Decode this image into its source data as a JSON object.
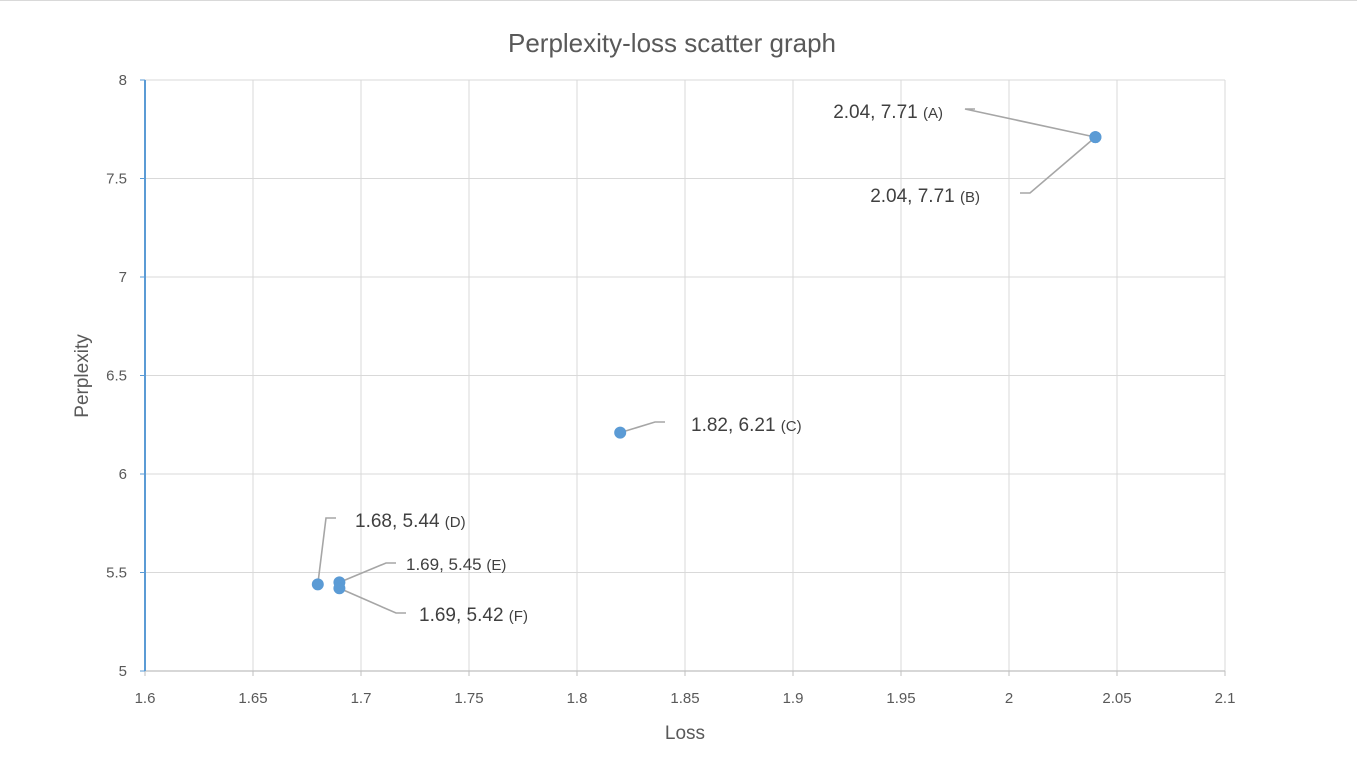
{
  "chart_data": {
    "type": "scatter",
    "title": "Perplexity-loss scatter graph",
    "xlabel": "Loss",
    "ylabel": "Perplexity",
    "xlim": [
      1.6,
      2.1
    ],
    "ylim": [
      5,
      8
    ],
    "xticks": [
      "1.6",
      "1.65",
      "1.7",
      "1.75",
      "1.8",
      "1.85",
      "1.9",
      "1.95",
      "2",
      "2.05",
      "2.1"
    ],
    "yticks": [
      "5",
      "5.5",
      "6",
      "6.5",
      "7",
      "7.5",
      "8"
    ],
    "grid": true,
    "legend": "none",
    "marker_color": "#5B9BD5",
    "points": [
      {
        "x": 2.04,
        "y": 7.71,
        "label": "2.04, 7.71",
        "tag": "(A)"
      },
      {
        "x": 2.04,
        "y": 7.71,
        "label": "2.04, 7.71",
        "tag": "(B)"
      },
      {
        "x": 1.82,
        "y": 6.21,
        "label": "1.82, 6.21",
        "tag": "(C)"
      },
      {
        "x": 1.68,
        "y": 5.44,
        "label": "1.68, 5.44",
        "tag": "(D)"
      },
      {
        "x": 1.69,
        "y": 5.45,
        "label": "1.69, 5.45",
        "tag": "(E)"
      },
      {
        "x": 1.69,
        "y": 5.42,
        "label": "1.69, 5.42",
        "tag": "(F)"
      }
    ]
  }
}
